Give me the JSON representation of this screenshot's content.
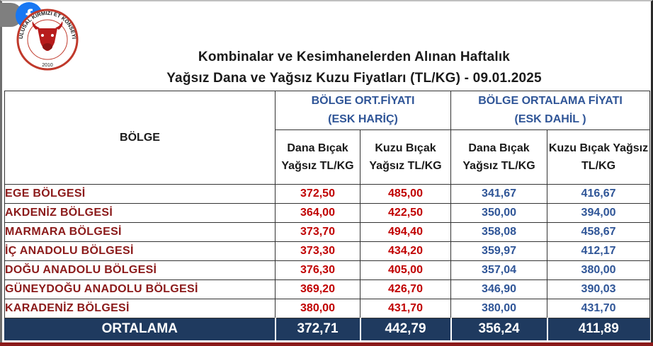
{
  "logo": {
    "text": "ULUSAL KIRMIZI ET KONSEYİ",
    "year": "2010",
    "colors": {
      "ring": "#c0392b",
      "bull": "#b71c1c"
    }
  },
  "social_badge": {
    "icon": "facebook-icon",
    "glyph": "f",
    "color": "#1877f2"
  },
  "title": {
    "line1": "Kombinalar ve Kesimhanelerden Alınan Haftalık",
    "line2": "Yağsız Dana ve Yağsız Kuzu Fiyatları (TL/KG) - 09.01.2025"
  },
  "table": {
    "region_header": "BÖLGE",
    "group1": {
      "line1": "BÖLGE ORT.FİYATI",
      "line2": "(ESK HARİÇ)"
    },
    "group2": {
      "line1": "BÖLGE ORTALAMA FİYATI",
      "line2": "(ESK DAHİL )"
    },
    "sub": {
      "c1": {
        "line1": "Dana Bıçak",
        "line2": "Yağsız TL/KG"
      },
      "c2": {
        "line1": "Kuzu Bıçak",
        "line2": "Yağsız TL/KG"
      },
      "c3": {
        "line1": "Dana Bıçak",
        "line2": "Yağsız TL/KG"
      },
      "c4": {
        "line1": "Kuzu Bıçak Yağsız",
        "line2": "TL/KG"
      }
    },
    "rows": [
      {
        "region": "EGE BÖLGESİ",
        "v1": "372,50",
        "v2": "485,00",
        "v3": "341,67",
        "v4": "416,67"
      },
      {
        "region": "AKDENİZ BÖLGESİ",
        "v1": "364,00",
        "v2": "422,50",
        "v3": "350,00",
        "v4": "394,00"
      },
      {
        "region": "MARMARA BÖLGESİ",
        "v1": "373,70",
        "v2": "494,40",
        "v3": "358,08",
        "v4": "458,67"
      },
      {
        "region": "İÇ ANADOLU BÖLGESİ",
        "v1": "373,30",
        "v2": "434,20",
        "v3": "359,97",
        "v4": "412,17"
      },
      {
        "region": "DOĞU ANADOLU BÖLGESİ",
        "v1": "376,30",
        "v2": "405,00",
        "v3": "357,04",
        "v4": "380,00"
      },
      {
        "region": "GÜNEYDOĞU ANADOLU BÖLGESİ",
        "v1": "369,20",
        "v2": "426,70",
        "v3": "346,90",
        "v4": "390,03"
      },
      {
        "region": "KARADENİZ BÖLGESİ",
        "v1": "380,00",
        "v2": "431,70",
        "v3": "380,00",
        "v4": "431,70"
      }
    ],
    "average": {
      "label": "ORTALAMA",
      "v1": "372,71",
      "v2": "442,79",
      "v3": "356,24",
      "v4": "411,89"
    }
  },
  "colors": {
    "region_text": "#8b1a1a",
    "excl_values": "#c00000",
    "incl_values": "#2f5597",
    "average_bg": "#1f3a5f"
  }
}
